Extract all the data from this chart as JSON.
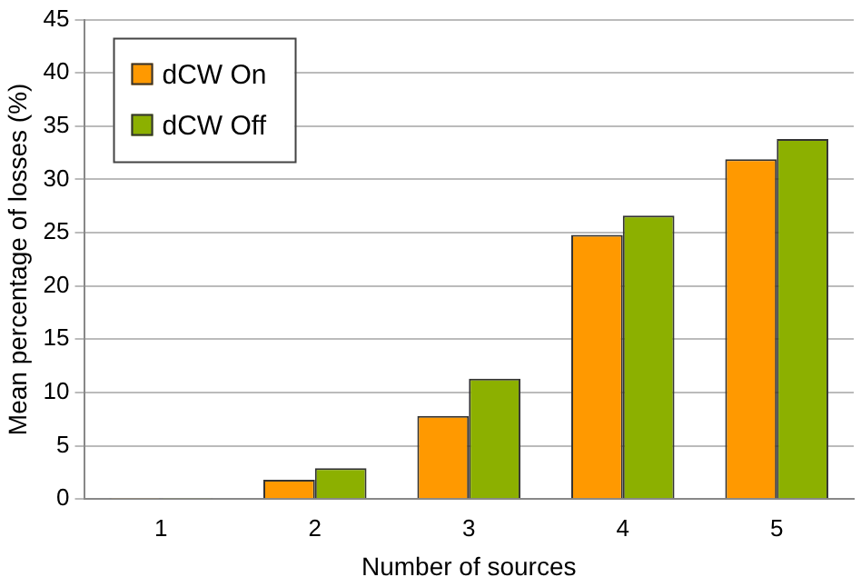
{
  "chart_data": {
    "type": "bar",
    "xlabel": "Number of sources",
    "ylabel": "Mean percentage of losses (%)",
    "categories": [
      "1",
      "2",
      "3",
      "4",
      "5"
    ],
    "series": [
      {
        "name": "dCW On",
        "color": "#ff9900",
        "values": [
          0.1,
          1.8,
          7.8,
          24.8,
          31.9
        ]
      },
      {
        "name": "dCW Off",
        "color": "#8cb000",
        "values": [
          0.1,
          2.9,
          11.3,
          26.6,
          33.8
        ]
      }
    ],
    "ylim": [
      0,
      45
    ],
    "yticks": [
      0,
      5,
      10,
      15,
      20,
      25,
      30,
      35,
      40,
      45
    ],
    "grid": "y",
    "legend": "top left"
  }
}
